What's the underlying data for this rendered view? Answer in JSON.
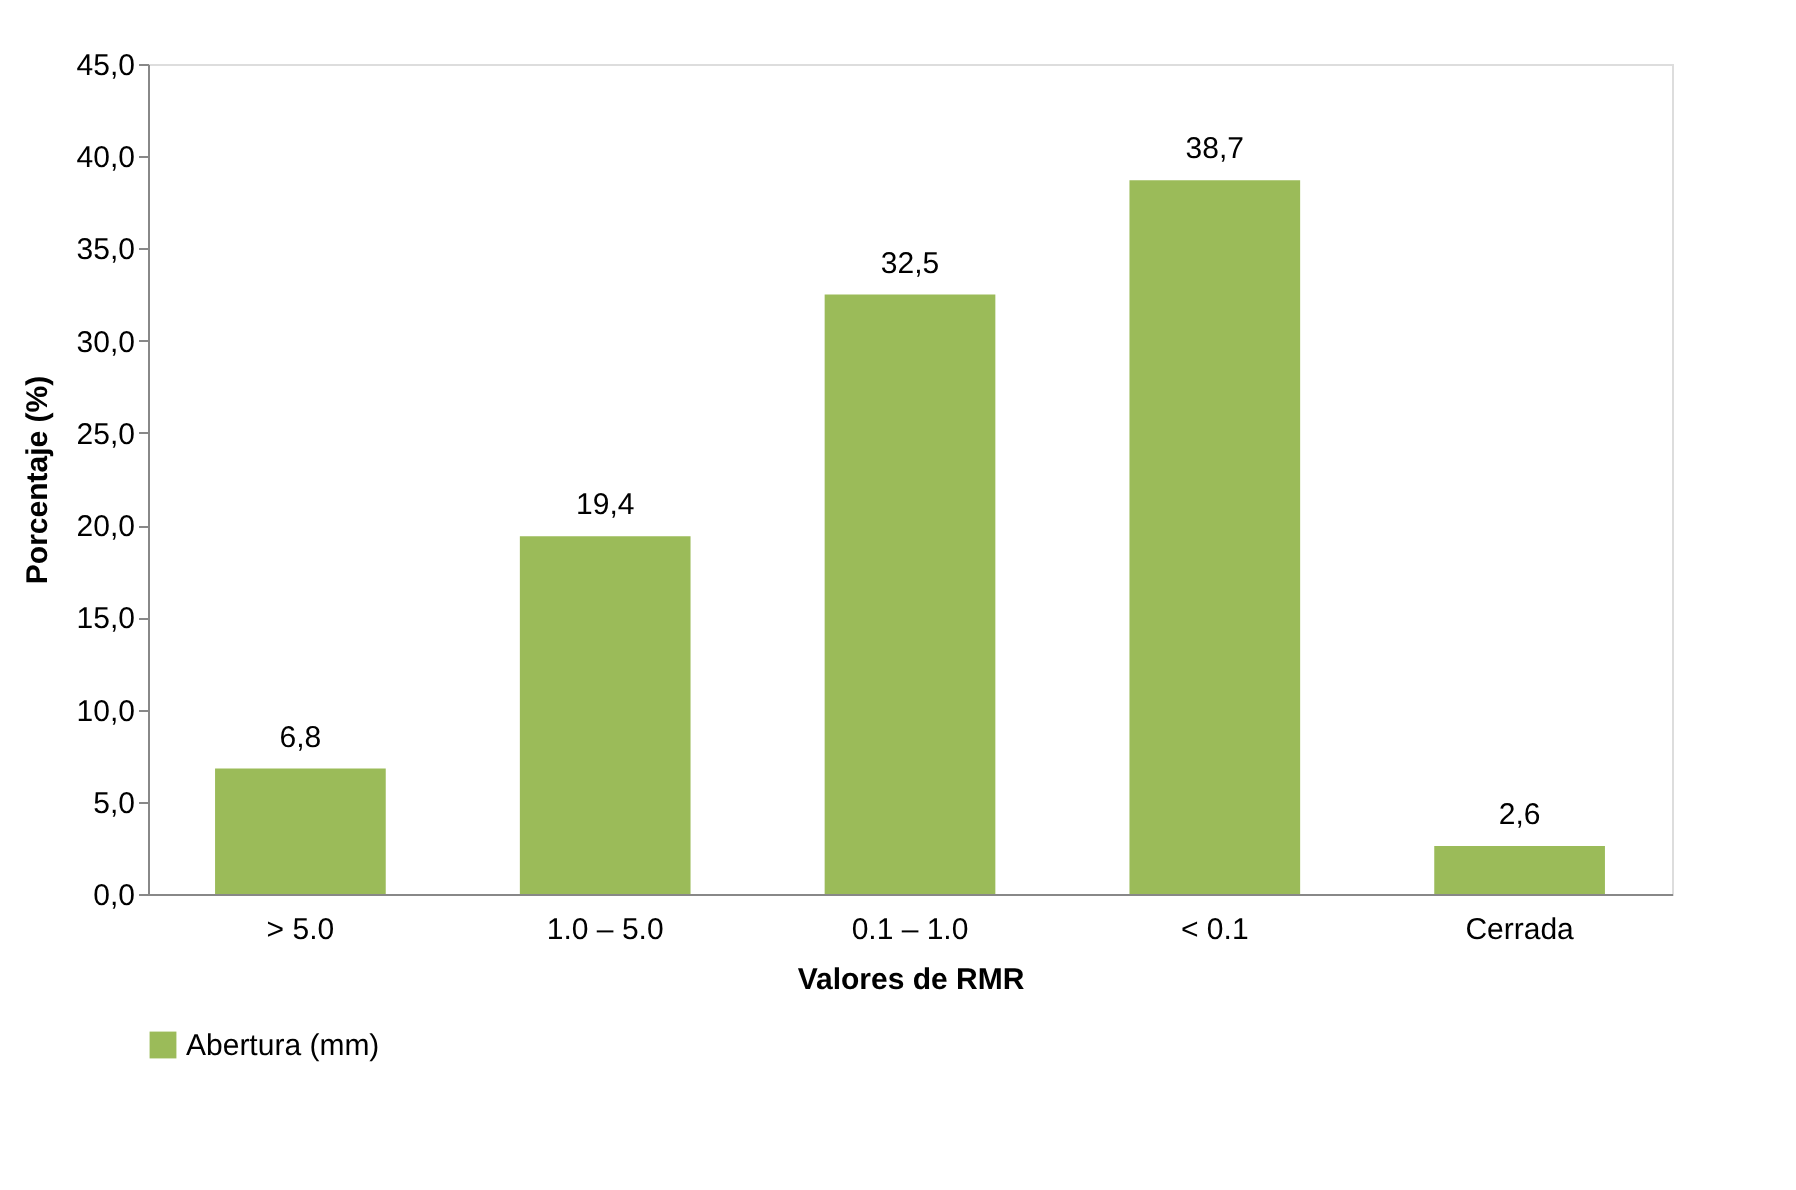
{
  "chart_data": {
    "type": "bar",
    "categories": [
      "> 5.0",
      "1.0 – 5.0",
      "0.1 – 1.0",
      "< 0.1",
      "Cerrada"
    ],
    "series": [
      {
        "name": "Abertura (mm)",
        "color": "#9bbb59",
        "values": [
          6.8,
          19.4,
          32.5,
          38.7,
          2.6
        ],
        "value_labels": [
          "6,8",
          "19,4",
          "32,5",
          "38,7",
          "2,6"
        ]
      }
    ],
    "xlabel": "Valores de RMR",
    "ylabel": "Porcentaje (%)",
    "ylim": [
      0,
      45
    ],
    "yticks": [
      {
        "value": 0,
        "label": "0,0"
      },
      {
        "value": 5,
        "label": "5,0"
      },
      {
        "value": 10,
        "label": "10,0"
      },
      {
        "value": 15,
        "label": "15,0"
      },
      {
        "value": 20,
        "label": "20,0"
      },
      {
        "value": 25,
        "label": "25,0"
      },
      {
        "value": 30,
        "label": "30,0"
      },
      {
        "value": 35,
        "label": "35,0"
      },
      {
        "value": 40,
        "label": "40,0"
      },
      {
        "value": 45,
        "label": "45,0"
      }
    ],
    "grid": false,
    "legend": "bottom"
  }
}
